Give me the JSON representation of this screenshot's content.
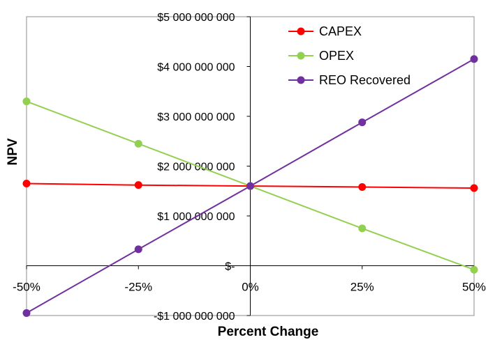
{
  "chart_data": {
    "type": "line",
    "xlabel": "Percent Change",
    "ylabel": "NPV",
    "x": [
      -50,
      -25,
      0,
      25,
      50
    ],
    "x_tick_labels": [
      "-50%",
      "-25%",
      "0%",
      "25%",
      "50%"
    ],
    "xlim": [
      -50,
      50
    ],
    "ylim": [
      -1000000000,
      5000000000
    ],
    "y_tick_values": [
      -1000000000,
      0,
      1000000000,
      2000000000,
      3000000000,
      4000000000,
      5000000000
    ],
    "y_tick_labels": [
      "-$1 000 000 000",
      "$-",
      "$1 000 000 000",
      "$2 000 000 000",
      "$3 000 000 000",
      "$4 000 000 000",
      "$5 000 000 000"
    ],
    "grid": false,
    "legend_position": "top-right",
    "series": [
      {
        "name": "CAPEX",
        "color": "#ff0000",
        "values": [
          1650000000,
          1620000000,
          1600000000,
          1580000000,
          1560000000
        ]
      },
      {
        "name": "OPEX",
        "color": "#92d050",
        "values": [
          3300000000,
          2450000000,
          1600000000,
          750000000,
          -80000000
        ]
      },
      {
        "name": "REO Recovered",
        "color": "#7030a0",
        "values": [
          -950000000,
          330000000,
          1600000000,
          2880000000,
          4150000000
        ]
      }
    ]
  }
}
